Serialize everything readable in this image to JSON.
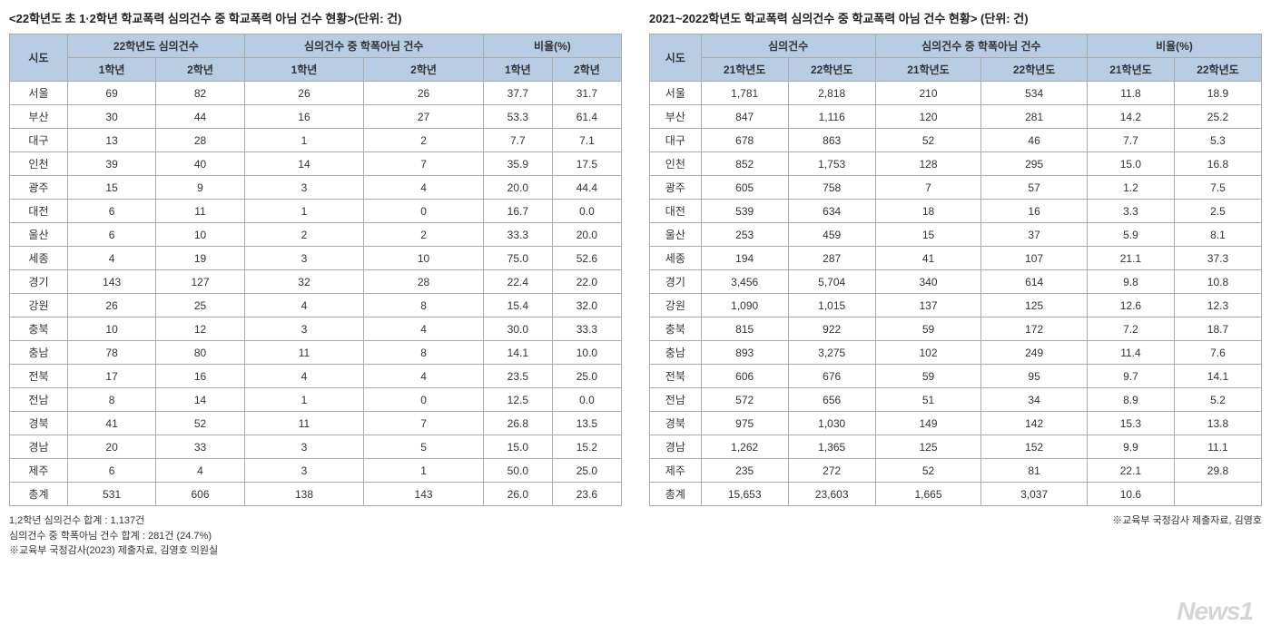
{
  "left": {
    "title": "<22학년도 초 1·2학년 학교폭력 심의건수 중 학교폭력 아님 건수 현황>(단위: 건)",
    "header_group1": "시도",
    "header_group2": "22학년도 심의건수",
    "header_group3": "심의건수 중 학폭아님 건수",
    "header_group4": "비율(%)",
    "sub_h1": "1학년",
    "sub_h2": "2학년",
    "sub_h3": "1학년",
    "sub_h4": "2학년",
    "sub_h5": "1학년",
    "sub_h6": "2학년",
    "rows": [
      {
        "r": "서울",
        "a": "69",
        "b": "82",
        "c": "26",
        "d": "26",
        "e": "37.7",
        "f": "31.7"
      },
      {
        "r": "부산",
        "a": "30",
        "b": "44",
        "c": "16",
        "d": "27",
        "e": "53.3",
        "f": "61.4"
      },
      {
        "r": "대구",
        "a": "13",
        "b": "28",
        "c": "1",
        "d": "2",
        "e": "7.7",
        "f": "7.1"
      },
      {
        "r": "인천",
        "a": "39",
        "b": "40",
        "c": "14",
        "d": "7",
        "e": "35.9",
        "f": "17.5"
      },
      {
        "r": "광주",
        "a": "15",
        "b": "9",
        "c": "3",
        "d": "4",
        "e": "20.0",
        "f": "44.4"
      },
      {
        "r": "대전",
        "a": "6",
        "b": "11",
        "c": "1",
        "d": "0",
        "e": "16.7",
        "f": "0.0"
      },
      {
        "r": "울산",
        "a": "6",
        "b": "10",
        "c": "2",
        "d": "2",
        "e": "33.3",
        "f": "20.0"
      },
      {
        "r": "세종",
        "a": "4",
        "b": "19",
        "c": "3",
        "d": "10",
        "e": "75.0",
        "f": "52.6"
      },
      {
        "r": "경기",
        "a": "143",
        "b": "127",
        "c": "32",
        "d": "28",
        "e": "22.4",
        "f": "22.0"
      },
      {
        "r": "강원",
        "a": "26",
        "b": "25",
        "c": "4",
        "d": "8",
        "e": "15.4",
        "f": "32.0"
      },
      {
        "r": "충북",
        "a": "10",
        "b": "12",
        "c": "3",
        "d": "4",
        "e": "30.0",
        "f": "33.3"
      },
      {
        "r": "충남",
        "a": "78",
        "b": "80",
        "c": "11",
        "d": "8",
        "e": "14.1",
        "f": "10.0"
      },
      {
        "r": "전북",
        "a": "17",
        "b": "16",
        "c": "4",
        "d": "4",
        "e": "23.5",
        "f": "25.0"
      },
      {
        "r": "전남",
        "a": "8",
        "b": "14",
        "c": "1",
        "d": "0",
        "e": "12.5",
        "f": "0.0"
      },
      {
        "r": "경북",
        "a": "41",
        "b": "52",
        "c": "11",
        "d": "7",
        "e": "26.8",
        "f": "13.5"
      },
      {
        "r": "경남",
        "a": "20",
        "b": "33",
        "c": "3",
        "d": "5",
        "e": "15.0",
        "f": "15.2"
      },
      {
        "r": "제주",
        "a": "6",
        "b": "4",
        "c": "3",
        "d": "1",
        "e": "50.0",
        "f": "25.0"
      },
      {
        "r": "총계",
        "a": "531",
        "b": "606",
        "c": "138",
        "d": "143",
        "e": "26.0",
        "f": "23.6"
      }
    ],
    "footnote1": "1,2학년 심의건수 합계 : 1,137건",
    "footnote2": "심의건수 중 학폭아님 건수 합계 : 281건 (24.7%)",
    "footnote3": "※교육부 국정감사(2023) 제출자료, 김영호 의원실"
  },
  "right": {
    "title": "2021~2022학년도 학교폭력 심의건수 중 학교폭력 아님 건수 현황> (단위: 건)",
    "header_group1": "시도",
    "header_group2": "심의건수",
    "header_group3": "심의건수 중 학폭아님 건수",
    "header_group4": "비율(%)",
    "sub_h1": "21학년도",
    "sub_h2": "22학년도",
    "sub_h3": "21학년도",
    "sub_h4": "22학년도",
    "sub_h5": "21학년도",
    "sub_h6": "22학년도",
    "rows": [
      {
        "r": "서울",
        "a": "1,781",
        "b": "2,818",
        "c": "210",
        "d": "534",
        "e": "11.8",
        "f": "18.9"
      },
      {
        "r": "부산",
        "a": "847",
        "b": "1,116",
        "c": "120",
        "d": "281",
        "e": "14.2",
        "f": "25.2"
      },
      {
        "r": "대구",
        "a": "678",
        "b": "863",
        "c": "52",
        "d": "46",
        "e": "7.7",
        "f": "5.3"
      },
      {
        "r": "인천",
        "a": "852",
        "b": "1,753",
        "c": "128",
        "d": "295",
        "e": "15.0",
        "f": "16.8"
      },
      {
        "r": "광주",
        "a": "605",
        "b": "758",
        "c": "7",
        "d": "57",
        "e": "1.2",
        "f": "7.5"
      },
      {
        "r": "대전",
        "a": "539",
        "b": "634",
        "c": "18",
        "d": "16",
        "e": "3.3",
        "f": "2.5"
      },
      {
        "r": "울산",
        "a": "253",
        "b": "459",
        "c": "15",
        "d": "37",
        "e": "5.9",
        "f": "8.1"
      },
      {
        "r": "세종",
        "a": "194",
        "b": "287",
        "c": "41",
        "d": "107",
        "e": "21.1",
        "f": "37.3"
      },
      {
        "r": "경기",
        "a": "3,456",
        "b": "5,704",
        "c": "340",
        "d": "614",
        "e": "9.8",
        "f": "10.8"
      },
      {
        "r": "강원",
        "a": "1,090",
        "b": "1,015",
        "c": "137",
        "d": "125",
        "e": "12.6",
        "f": "12.3"
      },
      {
        "r": "충북",
        "a": "815",
        "b": "922",
        "c": "59",
        "d": "172",
        "e": "7.2",
        "f": "18.7"
      },
      {
        "r": "충남",
        "a": "893",
        "b": "3,275",
        "c": "102",
        "d": "249",
        "e": "11.4",
        "f": "7.6"
      },
      {
        "r": "전북",
        "a": "606",
        "b": "676",
        "c": "59",
        "d": "95",
        "e": "9.7",
        "f": "14.1"
      },
      {
        "r": "전남",
        "a": "572",
        "b": "656",
        "c": "51",
        "d": "34",
        "e": "8.9",
        "f": "5.2"
      },
      {
        "r": "경북",
        "a": "975",
        "b": "1,030",
        "c": "149",
        "d": "142",
        "e": "15.3",
        "f": "13.8"
      },
      {
        "r": "경남",
        "a": "1,262",
        "b": "1,365",
        "c": "125",
        "d": "152",
        "e": "9.9",
        "f": "11.1"
      },
      {
        "r": "제주",
        "a": "235",
        "b": "272",
        "c": "52",
        "d": "81",
        "e": "22.1",
        "f": "29.8"
      },
      {
        "r": "총계",
        "a": "15,653",
        "b": "23,603",
        "c": "1,665",
        "d": "3,037",
        "e": "10.6",
        "f": ""
      }
    ],
    "footnote": "※교육부 국정감사 제출자료, 김영호"
  },
  "watermark": "News1",
  "styling": {
    "header_bg": "#b8cce4",
    "border_color": "#aaaaaa",
    "font_size_body": 12,
    "font_size_title": 13,
    "font_size_footnote": 11
  }
}
